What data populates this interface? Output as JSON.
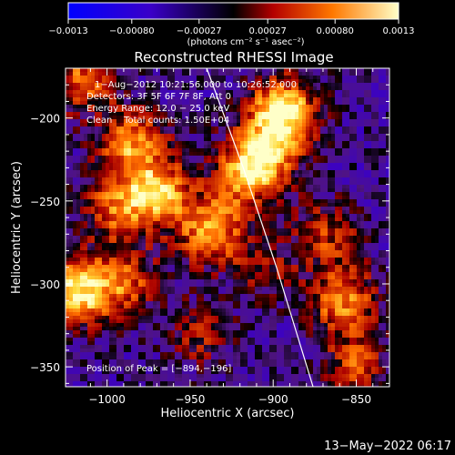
{
  "chart_data": {
    "type": "heatmap",
    "title": "Reconstructed RHESSI Image",
    "xlabel": "Heliocentric X (arcsec)",
    "ylabel": "Heliocentric Y (arcsec)",
    "xlim": [
      -1025,
      -830
    ],
    "ylim": [
      -362,
      -170
    ],
    "x_ticks": [
      -1000,
      -950,
      -900,
      -850
    ],
    "y_ticks": [
      -350,
      -300,
      -250,
      -200
    ],
    "x_tick_labels": [
      "−1000",
      "−950",
      "−900",
      "−850"
    ],
    "y_tick_labels": [
      "−350",
      "−300",
      "−250",
      "−200"
    ],
    "colorbar": {
      "min": -0.0013,
      "max": 0.0013,
      "ticks": [
        -0.0013,
        -0.0008,
        -0.00027,
        0.00027,
        0.0008,
        0.0013
      ],
      "tick_labels": [
        "−0.0013",
        "−0.00080",
        "−0.00027",
        "0.00027",
        "0.00080",
        "0.0013"
      ],
      "unit_label": "(photons cm⁻² s⁻¹ asec⁻²)"
    },
    "annotations": {
      "time_range": "1−Aug−2012 10:21:56.000 to 10:26:52.000",
      "detectors": "Detectors: 3F 5F 6F 7F 8F, Att 0",
      "energy": "Energy Range: 12.0 − 25.0 keV",
      "clean": "Clean    Total counts: 1.50E+04",
      "peak": "Position of Peak = [−894,−196]"
    },
    "sources": [
      {
        "x": -894,
        "y": -196,
        "intensity": 1.0
      },
      {
        "x": -905,
        "y": -222,
        "intensity": 0.75
      },
      {
        "x": -918,
        "y": -235,
        "intensity": 0.6
      },
      {
        "x": -1015,
        "y": -177,
        "intensity": 0.6
      },
      {
        "x": -985,
        "y": -215,
        "intensity": 0.7
      },
      {
        "x": -970,
        "y": -245,
        "intensity": 0.8
      },
      {
        "x": -995,
        "y": -255,
        "intensity": 0.55
      },
      {
        "x": -938,
        "y": -268,
        "intensity": 0.75
      },
      {
        "x": -1018,
        "y": -305,
        "intensity": 0.9
      },
      {
        "x": -990,
        "y": -298,
        "intensity": 0.55
      },
      {
        "x": -858,
        "y": -310,
        "intensity": 0.7
      },
      {
        "x": -868,
        "y": -270,
        "intensity": 0.45
      },
      {
        "x": -850,
        "y": -350,
        "intensity": 0.5
      },
      {
        "x": -945,
        "y": -330,
        "intensity": 0.35
      },
      {
        "x": -905,
        "y": -290,
        "intensity": 0.3
      }
    ],
    "limb_curve": [
      {
        "x": -940,
        "y": -170
      },
      {
        "x": -918,
        "y": -230
      },
      {
        "x": -898,
        "y": -290
      },
      {
        "x": -876,
        "y": -362
      }
    ]
  },
  "footer": {
    "timestamp": "13−May−2022 06:17"
  }
}
